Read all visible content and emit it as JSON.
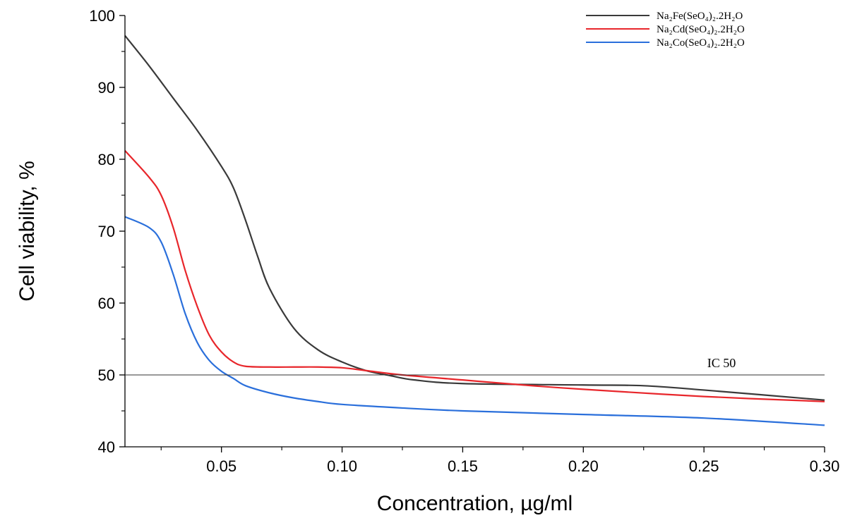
{
  "chart_data": {
    "type": "line",
    "title": "",
    "xlabel": "Concentration, µg/ml",
    "ylabel": "Cell viability, %",
    "xlim": [
      0.01,
      0.3
    ],
    "ylim": [
      40,
      100
    ],
    "x_ticks": [
      0.05,
      0.1,
      0.15,
      0.2,
      0.25,
      0.3
    ],
    "x_tick_labels": [
      "0.05",
      "0.10",
      "0.15",
      "0.20",
      "0.25",
      "0.30"
    ],
    "y_ticks": [
      40,
      50,
      60,
      70,
      80,
      90,
      100
    ],
    "y_tick_labels": [
      "40",
      "50",
      "60",
      "70",
      "80",
      "90",
      "100"
    ],
    "grid": false,
    "legend_position": "top-right",
    "reference_line": {
      "y": 50,
      "label": "IC 50",
      "color": "#333333"
    },
    "series": [
      {
        "name": "Na₂Fe(SeO₄)₂.2H₂O",
        "color": "#3a3a3a",
        "x": [
          0.01,
          0.02,
          0.03,
          0.04,
          0.05,
          0.055,
          0.06,
          0.065,
          0.07,
          0.08,
          0.09,
          0.1,
          0.11,
          0.12,
          0.13,
          0.15,
          0.2,
          0.225,
          0.25,
          0.3
        ],
        "y": [
          97.2,
          93.0,
          88.5,
          84.0,
          79.0,
          76.0,
          71.5,
          66.5,
          62.0,
          56.5,
          53.5,
          51.8,
          50.6,
          49.9,
          49.3,
          48.8,
          48.6,
          48.5,
          47.9,
          46.5
        ]
      },
      {
        "name": "Na₂Cd(SeO₄)₂.2H₂O",
        "color": "#e8262b",
        "x": [
          0.01,
          0.02,
          0.025,
          0.03,
          0.035,
          0.04,
          0.045,
          0.05,
          0.055,
          0.06,
          0.07,
          0.08,
          0.09,
          0.1,
          0.11,
          0.125,
          0.15,
          0.175,
          0.2,
          0.25,
          0.3
        ],
        "y": [
          81.2,
          77.5,
          75.0,
          70.5,
          64.5,
          59.5,
          55.5,
          53.2,
          51.8,
          51.2,
          51.1,
          51.1,
          51.1,
          51.0,
          50.6,
          50.0,
          49.3,
          48.6,
          48.0,
          47.0,
          46.3
        ]
      },
      {
        "name": "Na₂Co(SeO₄)₂.2H₂O",
        "color": "#2a6fdb",
        "x": [
          0.01,
          0.02,
          0.025,
          0.03,
          0.035,
          0.04,
          0.045,
          0.05,
          0.055,
          0.06,
          0.07,
          0.08,
          0.09,
          0.1,
          0.125,
          0.15,
          0.2,
          0.25,
          0.3
        ],
        "y": [
          72.0,
          70.5,
          68.5,
          64.0,
          58.5,
          54.5,
          52.0,
          50.5,
          49.5,
          48.5,
          47.5,
          46.8,
          46.3,
          45.9,
          45.4,
          45.0,
          44.5,
          44.0,
          43.0
        ]
      }
    ]
  }
}
